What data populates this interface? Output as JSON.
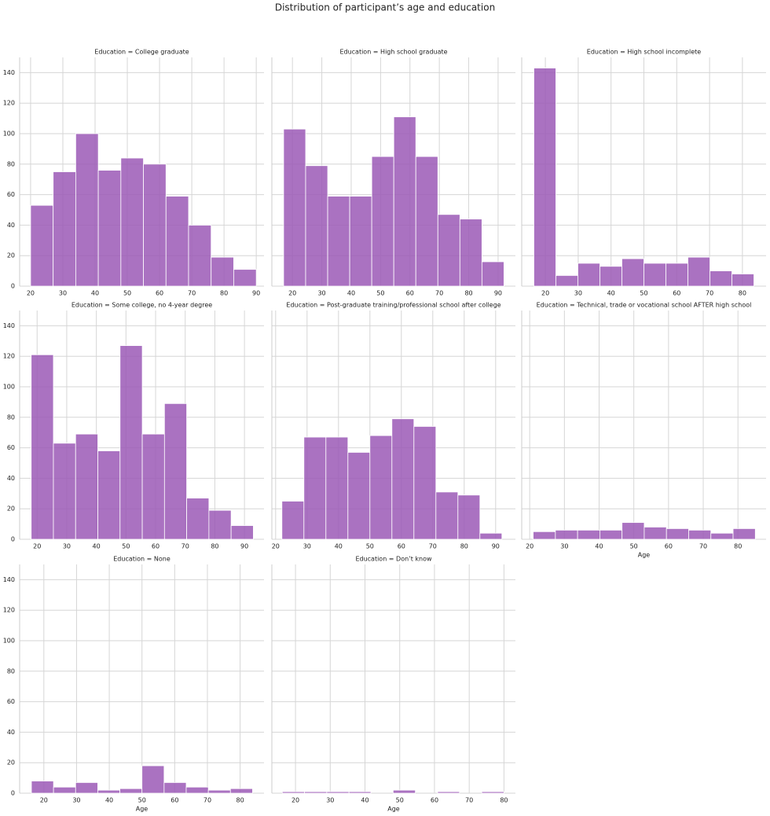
{
  "title": "Distribution of participant’s age and education",
  "chart_data": [
    {
      "type": "histogram",
      "title": "Education = College graduate",
      "bins": [
        20,
        27,
        34,
        41,
        48,
        55,
        62,
        69,
        76,
        83,
        90
      ],
      "values": [
        53,
        75,
        100,
        76,
        84,
        80,
        59,
        40,
        19,
        11
      ],
      "color": "#9b59b6",
      "xlim": [
        16.6,
        92.4
      ],
      "xticks": [
        20,
        30,
        40,
        50,
        60,
        70,
        80,
        90
      ],
      "ylim": [
        0,
        150
      ],
      "yticks": [
        0,
        20,
        40,
        60,
        80,
        100,
        120,
        140
      ],
      "grid": true
    },
    {
      "type": "histogram",
      "title": "Education = High school graduate",
      "bins": [
        17,
        24.5,
        32,
        39.5,
        47,
        54.5,
        62,
        69.5,
        77,
        84.5,
        92
      ],
      "values": [
        103,
        79,
        59,
        59,
        85,
        111,
        85,
        47,
        44,
        16
      ],
      "color": "#9b59b6",
      "xlim": [
        13,
        95.9
      ],
      "xticks": [
        20,
        30,
        40,
        50,
        60,
        70,
        80,
        90
      ],
      "ylim": [
        0,
        150
      ],
      "yticks": [
        0,
        20,
        40,
        60,
        80,
        100,
        120,
        140
      ],
      "grid": true
    },
    {
      "type": "histogram",
      "title": "Education = High school incomplete",
      "bins": [
        16.5,
        23.2,
        29.9,
        36.6,
        43.3,
        50,
        56.7,
        63.4,
        70.1,
        76.8,
        83.5
      ],
      "values": [
        143,
        7,
        15,
        13,
        18,
        15,
        15,
        19,
        10,
        8
      ],
      "color": "#9b59b6",
      "xlim": [
        12.8,
        87.2
      ],
      "xticks": [
        20,
        30,
        40,
        50,
        60,
        70,
        80
      ],
      "ylim": [
        0,
        150
      ],
      "yticks": [
        0,
        20,
        40,
        60,
        80,
        100,
        120,
        140
      ],
      "grid": true
    },
    {
      "type": "histogram",
      "title": "Education = Some college, no 4-year degree",
      "bins": [
        18,
        25.5,
        33,
        40.5,
        48,
        55.5,
        63,
        70.5,
        78,
        85.5,
        93
      ],
      "values": [
        121,
        63,
        69,
        58,
        127,
        69,
        89,
        27,
        19,
        9
      ],
      "color": "#9b59b6",
      "xlim": [
        14.1,
        96.6
      ],
      "xticks": [
        20,
        30,
        40,
        50,
        60,
        70,
        80,
        90
      ],
      "ylim": [
        0,
        150
      ],
      "yticks": [
        0,
        20,
        40,
        60,
        80,
        100,
        120,
        140
      ],
      "grid": true
    },
    {
      "type": "histogram",
      "title": "Education = Post-graduate training/professional school after college",
      "bins": [
        22,
        29,
        36,
        43,
        50,
        57,
        64,
        71,
        78,
        85,
        92
      ],
      "values": [
        25,
        67,
        67,
        57,
        68,
        79,
        74,
        31,
        29,
        4
      ],
      "color": "#9b59b6",
      "xlim": [
        18.8,
        96.3
      ],
      "xticks": [
        20,
        30,
        40,
        50,
        60,
        70,
        80,
        90
      ],
      "ylim": [
        0,
        150
      ],
      "yticks": [
        0,
        20,
        40,
        60,
        80,
        100,
        120,
        140
      ],
      "grid": true
    },
    {
      "type": "histogram",
      "title": "Education = Technical, trade or vocational school AFTER high school",
      "xlabel": "Age",
      "bins": [
        21,
        27.4,
        33.8,
        40.2,
        46.6,
        53,
        59.4,
        65.8,
        72.2,
        78.6,
        85
      ],
      "values": [
        5,
        6,
        6,
        6,
        11,
        8,
        7,
        6,
        4,
        7
      ],
      "color": "#9b59b6",
      "xlim": [
        17.7,
        88.1
      ],
      "xticks": [
        20,
        30,
        40,
        50,
        60,
        70,
        80
      ],
      "ylim": [
        0,
        150
      ],
      "yticks": [
        0,
        20,
        40,
        60,
        80,
        100,
        120,
        140
      ],
      "grid": true
    },
    {
      "type": "histogram",
      "title": "Education = None",
      "xlabel": "Age",
      "bins": [
        16.2,
        22.96,
        29.72,
        36.48,
        43.24,
        50,
        56.76,
        63.52,
        70.28,
        77.04,
        83.8
      ],
      "values": [
        8,
        4,
        7,
        2,
        3,
        18,
        7,
        4,
        2,
        3
      ],
      "color": "#9b59b6",
      "xlim": [
        12.6,
        87.3
      ],
      "xticks": [
        20,
        30,
        40,
        50,
        60,
        70,
        80
      ],
      "ylim": [
        0,
        150
      ],
      "yticks": [
        0,
        20,
        40,
        60,
        80,
        100,
        120,
        140
      ],
      "grid": true
    },
    {
      "type": "histogram",
      "title": "Education = Don’t know",
      "xlabel": "Age",
      "bins": [
        16.2,
        22.6,
        29,
        35.4,
        41.7,
        48.1,
        54.5,
        60.9,
        67.2,
        73.6,
        80
      ],
      "values": [
        1,
        1,
        1,
        1,
        0,
        2,
        0,
        1,
        0,
        1
      ],
      "color": "#9b59b6",
      "xlim": [
        13.2,
        83.3
      ],
      "xticks": [
        20,
        30,
        40,
        50,
        60,
        70,
        80
      ],
      "ylim": [
        0,
        150
      ],
      "yticks": [
        0,
        20,
        40,
        60,
        80,
        100,
        120,
        140
      ],
      "grid": true
    }
  ]
}
